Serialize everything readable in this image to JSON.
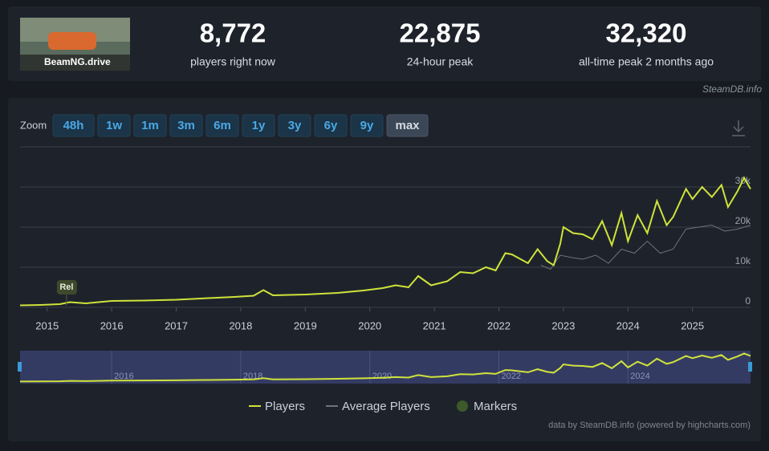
{
  "header": {
    "game": "BeamNG.drive",
    "stats": [
      {
        "value": "8,772",
        "label": "players right now"
      },
      {
        "value": "22,875",
        "label": "24-hour peak"
      },
      {
        "value": "32,320",
        "label": "all-time peak 2 months ago"
      }
    ],
    "source": "SteamDB.info"
  },
  "zoom": {
    "label": "Zoom",
    "options": [
      "48h",
      "1w",
      "1m",
      "3m",
      "6m",
      "1y",
      "3y",
      "6y",
      "9y",
      "max"
    ],
    "selected": "max"
  },
  "chart_data": {
    "type": "line",
    "xlim": [
      2014.58,
      2025.9
    ],
    "xticks": [
      2015,
      2016,
      2017,
      2018,
      2019,
      2020,
      2021,
      2022,
      2023,
      2024,
      2025
    ],
    "ylim": [
      0,
      40000
    ],
    "yticks": [
      0,
      {
        "value": 10000,
        "label": "10k"
      },
      {
        "value": 20000,
        "label": "20k"
      },
      {
        "value": 30000,
        "label": "30k"
      }
    ],
    "grid": true,
    "series": [
      {
        "name": "Players",
        "color": "#cfe33a",
        "x": [
          2014.58,
          2014.9,
          2015.2,
          2015.35,
          2015.6,
          2016.0,
          2016.5,
          2017.0,
          2017.5,
          2017.9,
          2018.2,
          2018.35,
          2018.5,
          2019.0,
          2019.5,
          2019.9,
          2020.2,
          2020.4,
          2020.6,
          2020.75,
          2020.95,
          2021.2,
          2021.4,
          2021.6,
          2021.8,
          2021.95,
          2022.1,
          2022.2,
          2022.45,
          2022.6,
          2022.75,
          2022.85,
          2022.95,
          2023.0,
          2023.15,
          2023.3,
          2023.45,
          2023.6,
          2023.75,
          2023.9,
          2024.0,
          2024.15,
          2024.3,
          2024.45,
          2024.6,
          2024.7,
          2024.9,
          2025.0,
          2025.15,
          2025.3,
          2025.45,
          2025.55,
          2025.7,
          2025.8,
          2025.9
        ],
        "values": [
          500,
          600,
          800,
          1300,
          1000,
          1600,
          1700,
          1900,
          2300,
          2600,
          2900,
          4300,
          3000,
          3200,
          3600,
          4200,
          4800,
          5500,
          5000,
          7800,
          5500,
          6500,
          8800,
          8500,
          10000,
          9200,
          13500,
          13200,
          11000,
          14500,
          11500,
          10500,
          15800,
          20000,
          18500,
          18200,
          17000,
          21500,
          15500,
          23500,
          16500,
          23000,
          18500,
          26500,
          20500,
          22500,
          29500,
          27000,
          30000,
          27500,
          30500,
          25000,
          29000,
          32300,
          29500
        ]
      },
      {
        "name": "Average Players",
        "color": "#6b737c",
        "x": [
          2022.65,
          2022.8,
          2022.95,
          2023.1,
          2023.3,
          2023.5,
          2023.7,
          2023.9,
          2024.1,
          2024.3,
          2024.5,
          2024.7,
          2024.9,
          2025.1,
          2025.3,
          2025.5,
          2025.7,
          2025.9
        ],
        "values": [
          10500,
          9500,
          13000,
          12500,
          12000,
          13000,
          11000,
          14500,
          13500,
          16500,
          13500,
          14500,
          19500,
          20000,
          20500,
          19000,
          19500,
          20500
        ]
      }
    ],
    "markers_legend": "Markers",
    "markers": [
      {
        "label": "Rel",
        "x": 2015.3
      }
    ],
    "navigator_ticks": [
      2016,
      2018,
      2020,
      2022,
      2024
    ],
    "credit": "data by SteamDB.info (powered by highcharts.com)"
  }
}
